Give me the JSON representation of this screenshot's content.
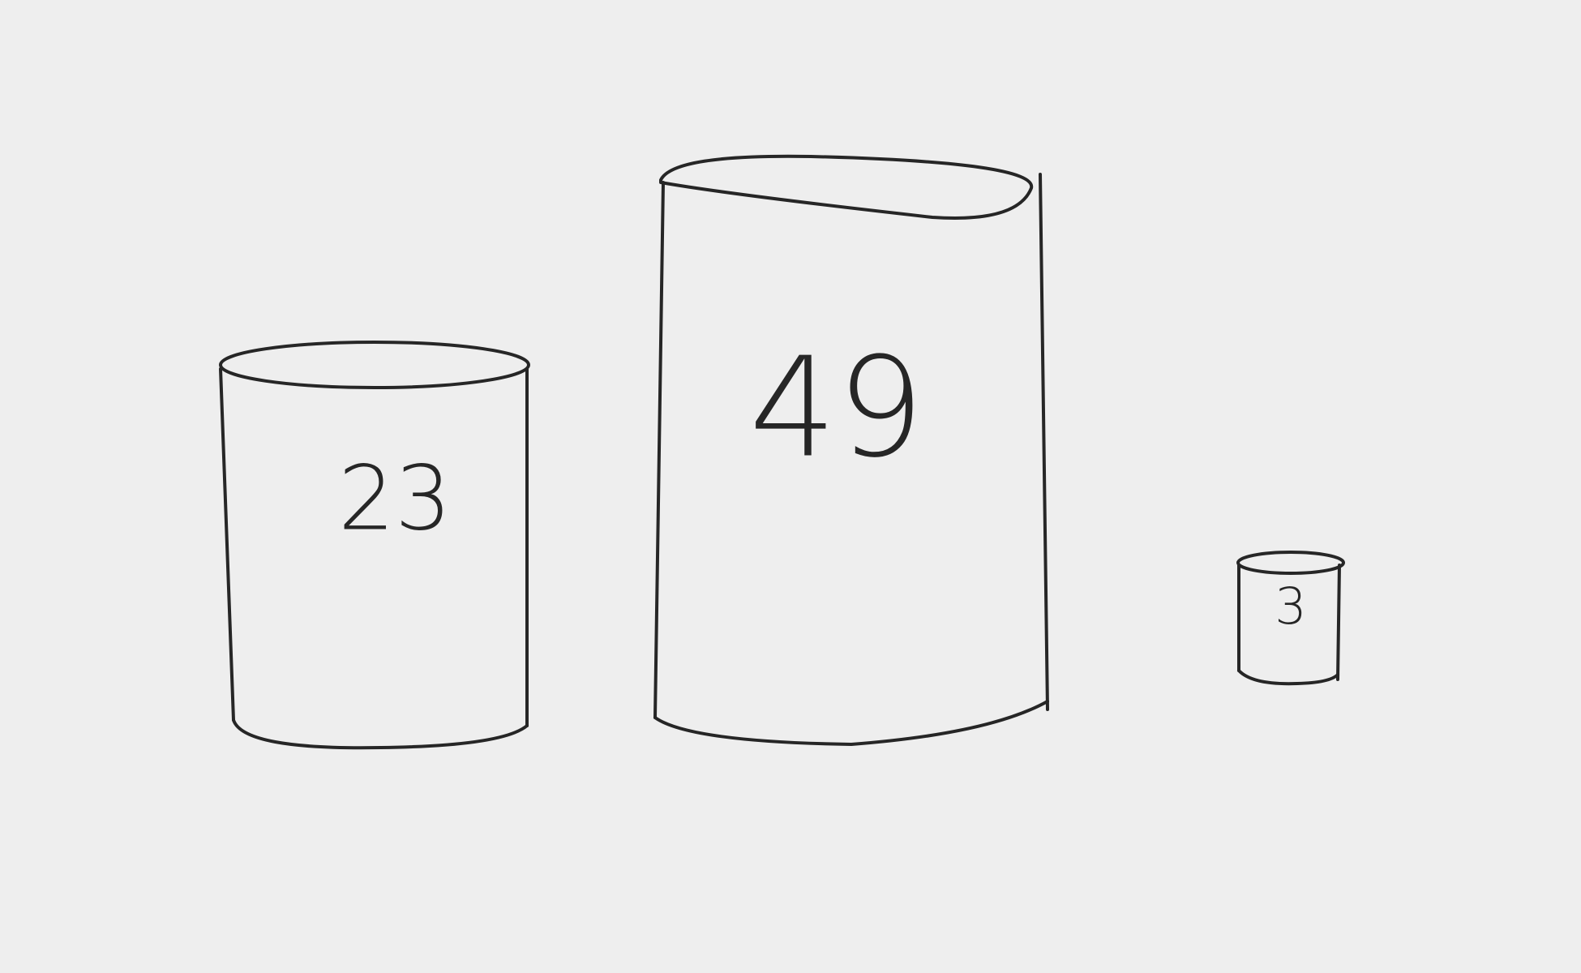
{
  "cylinders": [
    {
      "label": 23
    },
    {
      "label": 49
    },
    {
      "label": 3
    }
  ]
}
